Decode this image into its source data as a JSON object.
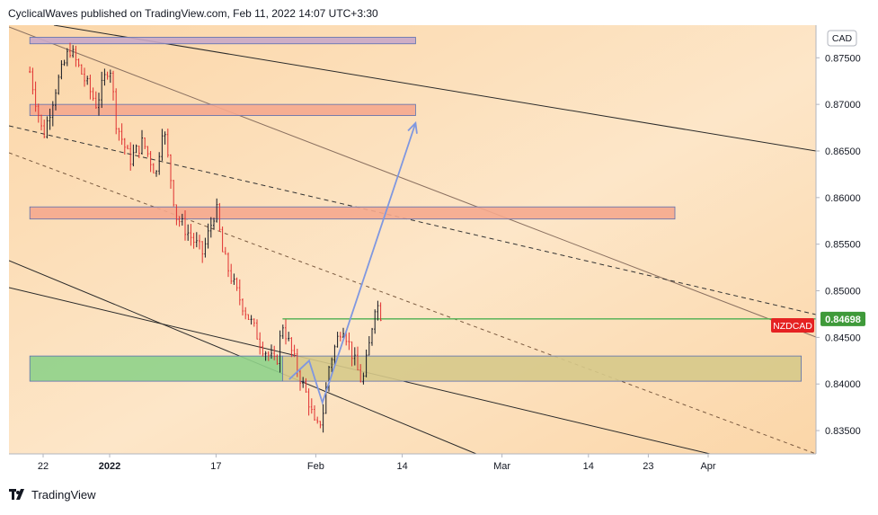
{
  "header": {
    "publish_line": "CyclicalWaves published on TradingView.com, Feb 11, 2022 14:07 UTC+3:30"
  },
  "footer": {
    "brand": "TradingView"
  },
  "colors": {
    "bg_light": "#fde6c8",
    "bg_mid": "#fbd6a8",
    "candle_up": "#131722",
    "candle_down": "#e03030",
    "zone_red": "#f5a88e",
    "zone_green": "#8fd18a",
    "zone_yellow": "#d6c98a",
    "hline_green": "#4caf50",
    "arrow_blue": "#7f97e0",
    "label_green": "#3f9a3a",
    "label_red": "#e52222"
  },
  "chart_data": {
    "type": "candlestick",
    "symbol": "NZDCAD",
    "currency": "CAD",
    "current_price": "0.84698",
    "symbol_label": "NZDCAD",
    "y_range": [
      0.8325,
      0.8785
    ],
    "y_ticks": [
      "0.87500",
      "0.87000",
      "0.86500",
      "0.86000",
      "0.85500",
      "0.85000",
      "0.84500",
      "0.84000",
      "0.83500"
    ],
    "x_ticks": [
      "22",
      "2022",
      "17",
      "Feb",
      "14",
      "Mar",
      "14",
      "23",
      "Apr"
    ],
    "x_ticks_bold": [
      false,
      true,
      false,
      false,
      false,
      false,
      false,
      false,
      false
    ],
    "x_dates": [
      "2021-12-22",
      "2022-01-01",
      "2022-01-17",
      "2022-02-01",
      "2022-02-14",
      "2022-03-01",
      "2022-03-14",
      "2022-03-23",
      "2022-04-01"
    ],
    "price_path": [
      [
        "2021-12-20",
        0.8735
      ],
      [
        "2021-12-22",
        0.8665
      ],
      [
        "2021-12-24",
        0.872
      ],
      [
        "2021-12-26",
        0.876
      ],
      [
        "2021-12-28",
        0.873
      ],
      [
        "2021-12-30",
        0.87
      ],
      [
        "2022-01-01",
        0.8745
      ],
      [
        "2022-01-02",
        0.868
      ],
      [
        "2022-01-04",
        0.864
      ],
      [
        "2022-01-06",
        0.866
      ],
      [
        "2022-01-08",
        0.8625
      ],
      [
        "2022-01-09",
        0.868
      ],
      [
        "2022-01-11",
        0.858
      ],
      [
        "2022-01-13",
        0.856
      ],
      [
        "2022-01-15",
        0.854
      ],
      [
        "2022-01-17",
        0.859
      ],
      [
        "2022-01-18",
        0.854
      ],
      [
        "2022-01-20",
        0.85
      ],
      [
        "2022-01-22",
        0.847
      ],
      [
        "2022-01-24",
        0.844
      ],
      [
        "2022-01-26",
        0.842
      ],
      [
        "2022-01-27",
        0.8465
      ],
      [
        "2022-01-29",
        0.842
      ],
      [
        "2022-01-31",
        0.838
      ],
      [
        "2022-02-01",
        0.835
      ],
      [
        "2022-02-02",
        0.8365
      ],
      [
        "2022-02-03",
        0.842
      ],
      [
        "2022-02-05",
        0.8465
      ],
      [
        "2022-02-07",
        0.842
      ],
      [
        "2022-02-08",
        0.84
      ],
      [
        "2022-02-09",
        0.844
      ],
      [
        "2022-02-10",
        0.849
      ],
      [
        "2022-02-11",
        0.847
      ]
    ],
    "zones": [
      {
        "from": "2021-12-20",
        "to": "2022-02-16",
        "low": 0.8765,
        "high": 0.8772,
        "color": "#c9a8c8"
      },
      {
        "from": "2021-12-20",
        "to": "2022-02-16",
        "low": 0.8688,
        "high": 0.87,
        "color": "#f5a88e"
      },
      {
        "from": "2021-12-20",
        "to": "2022-03-27",
        "low": 0.8577,
        "high": 0.859,
        "color": "#f5a88e"
      },
      {
        "from": "2021-12-20",
        "to": "2022-01-27",
        "low": 0.8403,
        "high": 0.843,
        "color": "#8fd18a"
      },
      {
        "from": "2022-01-27",
        "to": "2022-04-15",
        "low": 0.8403,
        "high": 0.843,
        "color": "#d6c98a"
      }
    ],
    "horizontal_line": {
      "price": 0.84698,
      "from": "2022-01-27"
    },
    "arrow_path": [
      [
        "2022-01-28",
        0.8405
      ],
      [
        "2022-01-31",
        0.8425
      ],
      [
        "2022-02-02",
        0.838
      ],
      [
        "2022-02-16",
        0.868
      ]
    ]
  }
}
